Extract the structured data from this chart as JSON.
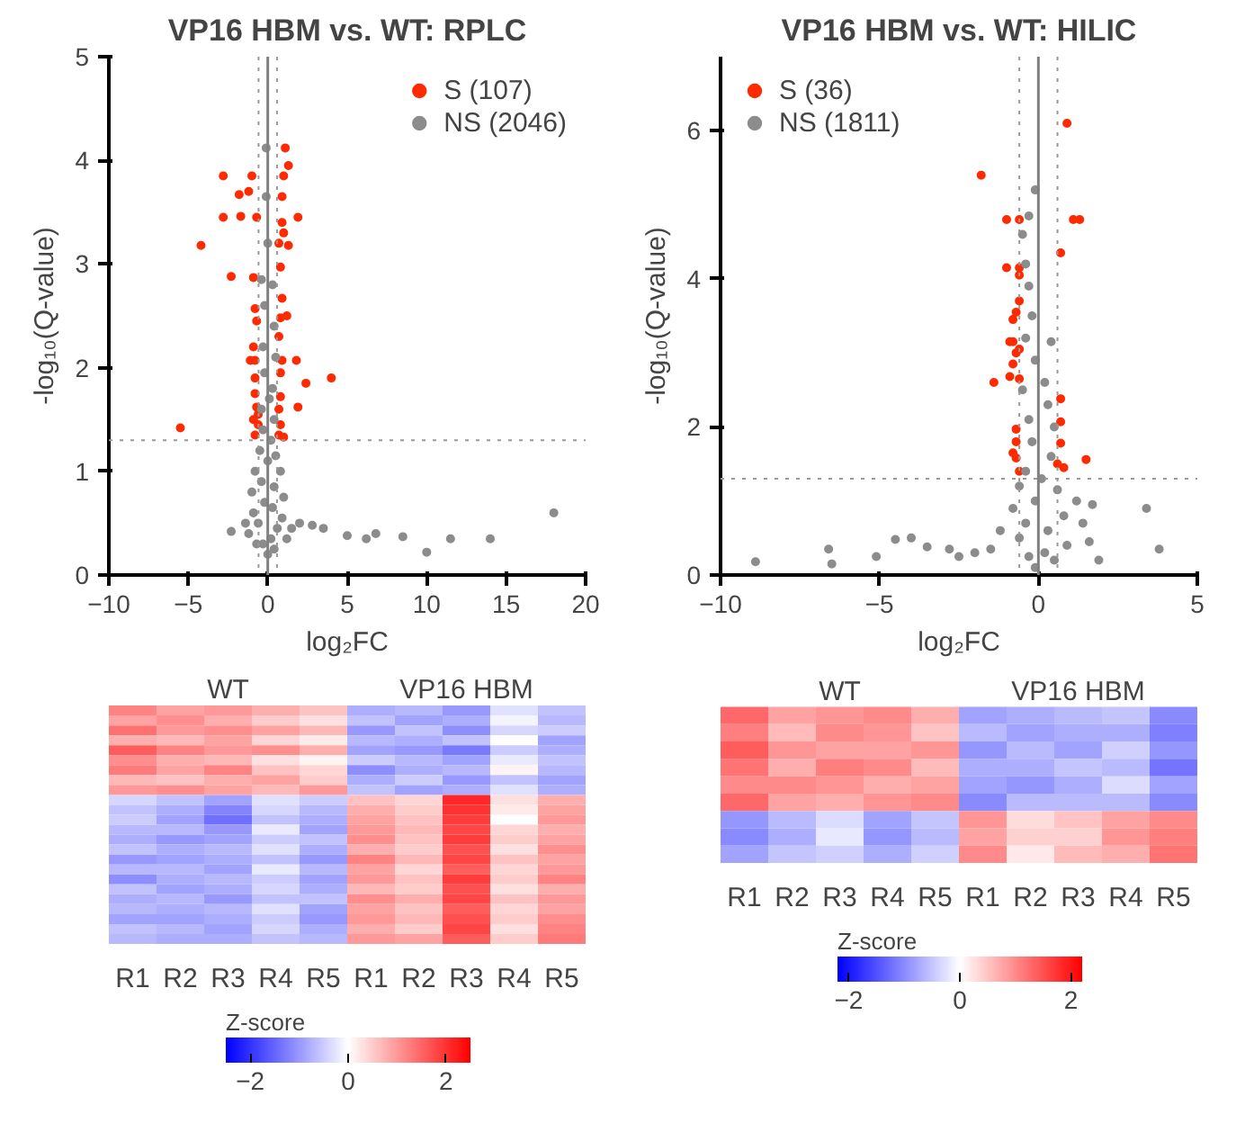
{
  "chart_data": [
    {
      "type": "scatter",
      "title": "VP16 HBM vs. WT: RPLC",
      "xlabel": "log₂FC",
      "ylabel": "-log₁₀(Q-value)",
      "xlim": [
        -10,
        20
      ],
      "ylim": [
        0,
        5
      ],
      "xticks": [
        -10,
        -5,
        0,
        5,
        10,
        15,
        20
      ],
      "yticks": [
        0,
        1,
        2,
        3,
        4,
        5
      ],
      "grid": false,
      "legend": "top right",
      "marker": "circle",
      "ref_lines": [
        {
          "axis": "x",
          "value": 0,
          "color": "#808080",
          "line_style": "solid"
        },
        {
          "axis": "x",
          "value": -0.58,
          "color": "#999999",
          "line_style": "dotted"
        },
        {
          "axis": "x",
          "value": 0.58,
          "color": "#999999",
          "line_style": "dotted"
        },
        {
          "axis": "y",
          "value": 1.3,
          "color": "#999999",
          "line_style": "dotted"
        }
      ],
      "series": [
        {
          "name": "S (107)",
          "color": "#ff2a00",
          "x": [
            -5.5,
            -4.2,
            -2.8,
            -2.8,
            -2.3,
            -1.8,
            -1.7,
            -1.2,
            -1.0,
            -0.9,
            -0.7,
            -0.8,
            -0.7,
            -0.9,
            -0.8,
            -1.1,
            -0.8,
            -0.8,
            -0.7,
            -0.9,
            -0.6,
            -0.8,
            -0.6,
            1.1,
            1.3,
            1.0,
            0.9,
            1.9,
            0.9,
            1.0,
            1.3,
            0.7,
            0.8,
            0.9,
            1.2,
            0.8,
            0.7,
            0.9,
            1.8,
            0.8,
            2.4,
            4.0,
            1.9,
            0.8,
            0.7,
            0.8,
            0.7,
            1.0
          ],
          "values": [
            1.42,
            3.18,
            3.85,
            3.45,
            2.88,
            3.67,
            3.46,
            3.7,
            3.85,
            2.87,
            3.45,
            2.57,
            2.45,
            2.2,
            2.07,
            2.07,
            1.9,
            1.75,
            1.62,
            1.5,
            1.45,
            1.35,
            1.55,
            4.12,
            3.95,
            3.85,
            3.65,
            3.45,
            3.4,
            3.3,
            3.18,
            3.2,
            2.97,
            2.67,
            2.5,
            2.48,
            2.3,
            2.07,
            2.07,
            1.95,
            1.85,
            1.9,
            1.62,
            1.72,
            1.6,
            1.45,
            1.35,
            1.33
          ]
        },
        {
          "name": "NS (2046)",
          "color": "#8c8c8c",
          "x": [
            -0.1,
            -0.1,
            0.0,
            0.3,
            -0.4,
            -0.2,
            0.4,
            -0.3,
            0.5,
            -0.2,
            0.3,
            0.1,
            -0.4,
            0.4,
            -0.3,
            0.2,
            -0.5,
            0.5,
            0.0,
            -0.8,
            0.8,
            -0.4,
            0.4,
            -1.0,
            1.0,
            -0.2,
            0.3,
            -0.9,
            0.9,
            -0.6,
            0.6,
            -1.2,
            0.2,
            -0.3,
            0.4,
            0.0,
            -2.3,
            -1.4,
            1.5,
            2.0,
            2.8,
            3.5,
            5.0,
            6.2,
            6.8,
            8.5,
            10.0,
            11.5,
            14.0,
            18.0,
            1.2,
            -0.7
          ],
          "values": [
            4.12,
            3.65,
            3.2,
            2.8,
            2.85,
            2.6,
            2.4,
            2.2,
            2.1,
            1.95,
            1.8,
            1.7,
            1.6,
            1.5,
            1.4,
            1.3,
            1.2,
            1.15,
            1.1,
            1.0,
            1.0,
            0.9,
            0.85,
            0.8,
            0.75,
            0.7,
            0.65,
            0.6,
            0.55,
            0.5,
            0.45,
            0.4,
            0.35,
            0.3,
            0.25,
            0.2,
            0.42,
            0.5,
            0.45,
            0.5,
            0.48,
            0.45,
            0.38,
            0.35,
            0.4,
            0.37,
            0.22,
            0.35,
            0.35,
            0.6,
            0.35,
            0.3
          ]
        }
      ]
    },
    {
      "type": "scatter",
      "title": "VP16 HBM vs. WT: HILIC",
      "xlabel": "log₂FC",
      "ylabel": "-log₁₀(Q-value)",
      "xlim": [
        -10,
        5
      ],
      "ylim": [
        0,
        7
      ],
      "xticks": [
        -10,
        -5,
        0,
        5
      ],
      "yticks": [
        0,
        2,
        4,
        6
      ],
      "grid": false,
      "legend": "top left",
      "marker": "circle",
      "ref_lines": [
        {
          "axis": "x",
          "value": 0,
          "color": "#808080",
          "line_style": "solid"
        },
        {
          "axis": "x",
          "value": -0.6,
          "color": "#999999",
          "line_style": "dotted"
        },
        {
          "axis": "x",
          "value": 0.6,
          "color": "#999999",
          "line_style": "dotted"
        },
        {
          "axis": "y",
          "value": 1.3,
          "color": "#999999",
          "line_style": "dotted"
        }
      ],
      "series": [
        {
          "name": "S (36)",
          "color": "#ff2a00",
          "x": [
            -1.8,
            -1.0,
            -0.6,
            0.9,
            1.1,
            1.3,
            0.7,
            -1.0,
            -0.6,
            -0.6,
            -0.6,
            -0.7,
            -0.8,
            -0.9,
            -0.8,
            -0.7,
            -0.6,
            -0.8,
            -0.9,
            -0.6,
            -1.4,
            0.7,
            0.7,
            -0.7,
            -0.7,
            0.7,
            -0.8,
            -0.7,
            1.5,
            0.6,
            0.8,
            -0.6
          ],
          "values": [
            5.4,
            4.8,
            4.8,
            6.1,
            4.8,
            4.8,
            4.35,
            4.15,
            4.15,
            4.05,
            3.7,
            3.55,
            3.45,
            3.15,
            3.15,
            3.0,
            3.05,
            2.85,
            2.68,
            2.65,
            2.6,
            2.38,
            2.07,
            1.97,
            1.8,
            1.78,
            1.65,
            1.58,
            1.56,
            1.5,
            1.45,
            1.4
          ]
        },
        {
          "name": "NS (1811)",
          "color": "#8c8c8c",
          "x": [
            -0.1,
            -0.3,
            -0.5,
            -0.4,
            -0.3,
            -0.2,
            -0.4,
            0.4,
            -0.1,
            0.2,
            -0.5,
            0.3,
            -0.3,
            0.5,
            -0.2,
            0.4,
            -0.4,
            0.1,
            -0.6,
            0.6,
            -0.1,
            1.2,
            1.7,
            3.4,
            -0.8,
            0.8,
            -0.4,
            1.4,
            -1.2,
            0.3,
            -0.6,
            1.6,
            0.9,
            -1.5,
            0.2,
            -0.3,
            0.5,
            -0.1,
            3.8,
            1.9,
            -2.0,
            -2.8,
            -3.5,
            -4.0,
            -4.5,
            -5.1,
            -6.6,
            -6.5,
            -8.9,
            -2.5
          ],
          "values": [
            5.2,
            4.85,
            4.6,
            4.2,
            3.9,
            3.5,
            3.2,
            3.15,
            2.9,
            2.6,
            2.5,
            2.3,
            2.1,
            2.0,
            1.8,
            1.6,
            1.4,
            1.3,
            1.2,
            1.15,
            1.0,
            1.0,
            0.95,
            0.9,
            0.9,
            0.8,
            0.7,
            0.7,
            0.6,
            0.6,
            0.5,
            0.45,
            0.4,
            0.35,
            0.3,
            0.25,
            0.2,
            0.1,
            0.35,
            0.2,
            0.3,
            0.35,
            0.38,
            0.5,
            0.48,
            0.25,
            0.35,
            0.15,
            0.18,
            0.25
          ]
        }
      ]
    },
    {
      "type": "heatmap",
      "annotations": [
        "WT",
        "VP16 HBM"
      ],
      "clabel": "Z-score",
      "clim": [
        -2.5,
        2.5
      ],
      "cticks": [
        -2,
        0,
        2
      ],
      "categories": [
        "R1",
        "R2",
        "R3",
        "R4",
        "R5",
        "R1",
        "R2",
        "R3",
        "R4",
        "R5"
      ],
      "y_categories": [
        null,
        null,
        null,
        null,
        null,
        null,
        null,
        null,
        null,
        null,
        null,
        null,
        null,
        null,
        null,
        null,
        null,
        null,
        null,
        null,
        null,
        null,
        null,
        null
      ],
      "cells": [
        [
          1.2,
          0.9,
          1.0,
          0.8,
          0.6,
          -0.8,
          -0.7,
          -1.0,
          -0.3,
          -0.6
        ],
        [
          0.9,
          1.1,
          0.8,
          0.5,
          0.3,
          -0.6,
          -0.9,
          -0.8,
          -0.1,
          -0.7
        ],
        [
          1.4,
          1.0,
          1.1,
          0.9,
          0.7,
          -1.0,
          -0.6,
          -1.1,
          -0.4,
          -0.5
        ],
        [
          0.8,
          0.7,
          0.9,
          0.4,
          0.2,
          -0.7,
          -0.8,
          -0.6,
          0.0,
          -0.9
        ],
        [
          1.6,
          1.2,
          1.0,
          1.1,
          0.8,
          -0.9,
          -1.0,
          -1.3,
          -0.5,
          -0.8
        ],
        [
          1.1,
          0.8,
          0.7,
          0.3,
          0.1,
          -0.5,
          -0.7,
          -0.9,
          -0.2,
          -0.6
        ],
        [
          1.3,
          0.9,
          1.2,
          0.6,
          0.4,
          -1.1,
          -0.8,
          -0.7,
          0.1,
          -0.7
        ],
        [
          0.7,
          0.6,
          0.8,
          0.9,
          0.5,
          -0.8,
          -0.5,
          -1.0,
          -0.6,
          -0.9
        ],
        [
          1.0,
          1.1,
          0.9,
          0.7,
          1.0,
          -0.6,
          -0.9,
          -0.8,
          -0.3,
          -0.8
        ],
        [
          -0.4,
          -0.6,
          -0.9,
          -0.3,
          -0.5,
          0.6,
          0.4,
          2.1,
          0.3,
          0.8
        ],
        [
          -0.6,
          -0.8,
          -1.2,
          -0.4,
          -0.7,
          0.8,
          0.5,
          2.0,
          0.2,
          0.9
        ],
        [
          -0.5,
          -0.9,
          -1.4,
          -0.6,
          -0.8,
          0.9,
          0.6,
          1.9,
          0.0,
          1.0
        ],
        [
          -0.7,
          -0.7,
          -1.0,
          -0.2,
          -0.9,
          1.0,
          0.7,
          1.8,
          0.4,
          0.8
        ],
        [
          -0.8,
          -1.0,
          -0.9,
          -0.5,
          -0.6,
          1.1,
          0.6,
          1.9,
          0.5,
          0.9
        ],
        [
          -0.6,
          -0.8,
          -0.7,
          -0.3,
          -0.8,
          0.8,
          0.5,
          1.7,
          0.3,
          1.1
        ],
        [
          -1.0,
          -0.9,
          -0.8,
          -0.6,
          -1.0,
          1.2,
          0.7,
          1.8,
          0.6,
          0.9
        ],
        [
          -0.7,
          -0.7,
          -0.9,
          -0.2,
          -0.7,
          0.9,
          0.4,
          1.6,
          0.4,
          1.0
        ],
        [
          -1.1,
          -0.8,
          -0.7,
          -0.5,
          -0.9,
          1.0,
          0.6,
          1.9,
          0.5,
          1.2
        ],
        [
          -0.6,
          -0.9,
          -0.8,
          -0.4,
          -0.8,
          0.7,
          0.5,
          1.7,
          0.3,
          0.8
        ],
        [
          -0.8,
          -0.7,
          -1.0,
          -0.6,
          -0.6,
          1.1,
          0.8,
          1.8,
          0.6,
          1.0
        ],
        [
          -0.7,
          -0.8,
          -0.7,
          -0.3,
          -0.9,
          0.9,
          0.6,
          1.6,
          0.4,
          0.9
        ],
        [
          -0.9,
          -0.9,
          -0.8,
          -0.5,
          -1.0,
          1.0,
          0.7,
          1.7,
          0.5,
          1.1
        ],
        [
          -0.6,
          -0.7,
          -0.9,
          -0.4,
          -0.8,
          0.8,
          0.5,
          1.8,
          0.3,
          1.2
        ],
        [
          -0.7,
          -0.8,
          -0.8,
          -0.6,
          -0.7,
          1.0,
          0.9,
          1.6,
          0.5,
          1.3
        ]
      ]
    },
    {
      "type": "heatmap",
      "annotations": [
        "WT",
        "VP16 HBM"
      ],
      "clabel": "Z-score",
      "clim": [
        -2.2,
        2.2
      ],
      "cticks": [
        -2,
        0,
        2
      ],
      "categories": [
        "R1",
        "R2",
        "R3",
        "R4",
        "R5",
        "R1",
        "R2",
        "R3",
        "R4",
        "R5"
      ],
      "y_categories": [
        null,
        null,
        null,
        null,
        null,
        null,
        null,
        null,
        null
      ],
      "cells": [
        [
          1.3,
          0.8,
          0.9,
          1.0,
          0.7,
          -0.8,
          -0.7,
          -0.6,
          -0.5,
          -1.0
        ],
        [
          1.1,
          0.6,
          1.0,
          0.9,
          0.5,
          -0.6,
          -0.8,
          -0.7,
          -0.7,
          -1.1
        ],
        [
          1.4,
          0.9,
          0.8,
          0.8,
          0.9,
          -0.9,
          -0.6,
          -0.8,
          -0.4,
          -0.9
        ],
        [
          1.2,
          0.7,
          1.1,
          1.0,
          0.6,
          -0.7,
          -0.7,
          -0.5,
          -0.6,
          -1.2
        ],
        [
          1.0,
          1.0,
          0.9,
          0.7,
          0.8,
          -0.8,
          -0.9,
          -0.7,
          -0.3,
          -0.8
        ],
        [
          1.3,
          0.8,
          0.7,
          0.9,
          1.0,
          -1.0,
          -0.6,
          -0.6,
          -0.6,
          -1.0
        ],
        [
          -0.9,
          -0.6,
          -0.3,
          -0.8,
          -0.5,
          0.9,
          0.3,
          0.5,
          0.8,
          1.0
        ],
        [
          -1.0,
          -0.7,
          -0.2,
          -0.9,
          -0.6,
          0.8,
          0.4,
          0.4,
          0.9,
          1.1
        ],
        [
          -0.8,
          -0.5,
          -0.4,
          -0.7,
          -0.4,
          1.0,
          0.2,
          0.6,
          0.7,
          1.2
        ]
      ]
    }
  ]
}
